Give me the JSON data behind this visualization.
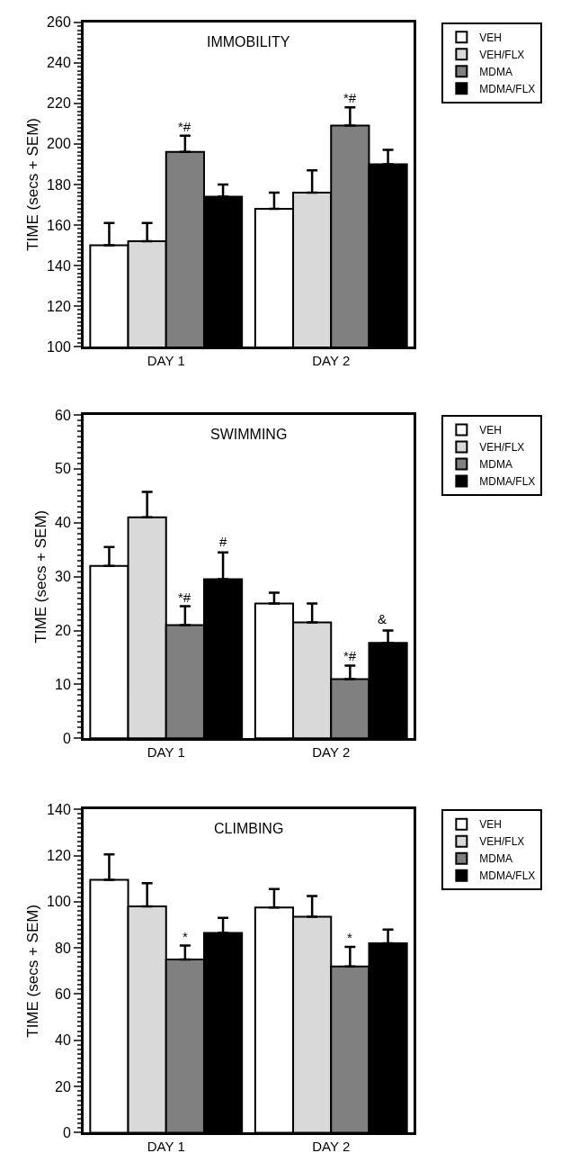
{
  "chart_data": [
    {
      "type": "bar",
      "title": "IMMOBILITY",
      "ylabel": "TIME (secs + SEM)",
      "categories": [
        "DAY 1",
        "DAY 2"
      ],
      "ylim": [
        100,
        260
      ],
      "yticks": [
        100,
        120,
        140,
        160,
        180,
        200,
        220,
        240,
        260
      ],
      "legend": "top right",
      "series": [
        {
          "name": "VEH",
          "color": "#ffffff",
          "values": [
            150,
            168
          ],
          "errors": [
            [
              150,
              161
            ],
            [
              168,
              176
            ]
          ]
        },
        {
          "name": "VEH/FLX",
          "color": "#d9d9d9",
          "values": [
            152,
            176
          ],
          "errors": [
            [
              152,
              161
            ],
            [
              176,
              187
            ]
          ]
        },
        {
          "name": "MDMA",
          "color": "#808080",
          "values": [
            196,
            209
          ],
          "errors": [
            [
              196,
              204
            ],
            [
              209,
              218
            ]
          ]
        },
        {
          "name": "MDMA/FLX",
          "color": "#000000",
          "values": [
            174,
            190
          ],
          "errors": [
            [
              174,
              180
            ],
            [
              190,
              197
            ]
          ]
        }
      ],
      "annotations": [
        {
          "text": "*#",
          "x": "DAY 1",
          "y": 196
        },
        {
          "text": "*#",
          "x": "DAY 2",
          "y": 209
        }
      ]
    },
    {
      "type": "bar",
      "title": "SWIMMING",
      "ylabel": "TIME (secs + SEM)",
      "categories": [
        "DAY 1",
        "DAY 2"
      ],
      "ylim": [
        0,
        60
      ],
      "yticks": [
        0,
        10,
        20,
        30,
        40,
        50,
        60
      ],
      "legend": "top right",
      "series": [
        {
          "name": "VEH",
          "color": "#ffffff",
          "values": [
            32,
            25
          ],
          "errors": [
            [
              32,
              35.5
            ],
            [
              25,
              27
            ]
          ]
        },
        {
          "name": "VEH/FLX",
          "color": "#d9d9d9",
          "values": [
            41,
            21.5
          ],
          "errors": [
            [
              41,
              45.7
            ],
            [
              21.5,
              25
            ]
          ]
        },
        {
          "name": "MDMA",
          "color": "#808080",
          "values": [
            21,
            11
          ],
          "errors": [
            [
              21,
              24.5
            ],
            [
              11,
              13.5
            ]
          ]
        },
        {
          "name": "MDMA/FLX",
          "color": "#000000",
          "values": [
            29.5,
            17.7
          ],
          "errors": [
            [
              29.5,
              34.5
            ],
            [
              17.7,
              20
            ]
          ]
        }
      ],
      "annotations": [
        {
          "text": "*#",
          "x": "DAY 1",
          "y": 21
        },
        "#",
        {
          "text": "*#",
          "x": "DAY 2",
          "y": 11
        },
        "&"
      ]
    },
    {
      "type": "bar",
      "title": "CLIMBING",
      "ylabel": "TIME (secs + SEM)",
      "categories": [
        "DAY 1",
        "DAY 2"
      ],
      "ylim": [
        0,
        140
      ],
      "yticks": [
        0,
        20,
        40,
        60,
        80,
        100,
        120,
        140
      ],
      "legend": "top right",
      "series": [
        {
          "name": "VEH",
          "color": "#ffffff",
          "values": [
            109.5,
            97.5
          ],
          "errors": [
            [
              109.5,
              120.5
            ],
            [
              97.5,
              105.5
            ]
          ]
        },
        {
          "name": "VEH/FLX",
          "color": "#d9d9d9",
          "values": [
            98,
            93.5
          ],
          "errors": [
            [
              98,
              108
            ],
            [
              93.5,
              102.5
            ]
          ]
        },
        {
          "name": "MDMA",
          "color": "#808080",
          "values": [
            75,
            72
          ],
          "errors": [
            [
              75,
              81
            ],
            [
              72,
              80.5
            ]
          ]
        },
        {
          "name": "MDMA/FLX",
          "color": "#000000",
          "values": [
            86.5,
            82
          ],
          "errors": [
            [
              86.5,
              93
            ],
            [
              82,
              88
            ]
          ]
        }
      ],
      "annotations": [
        {
          "text": "*",
          "x": "DAY 1",
          "y": 75
        },
        {
          "text": "*",
          "x": "DAY 2",
          "y": 72
        }
      ]
    }
  ]
}
